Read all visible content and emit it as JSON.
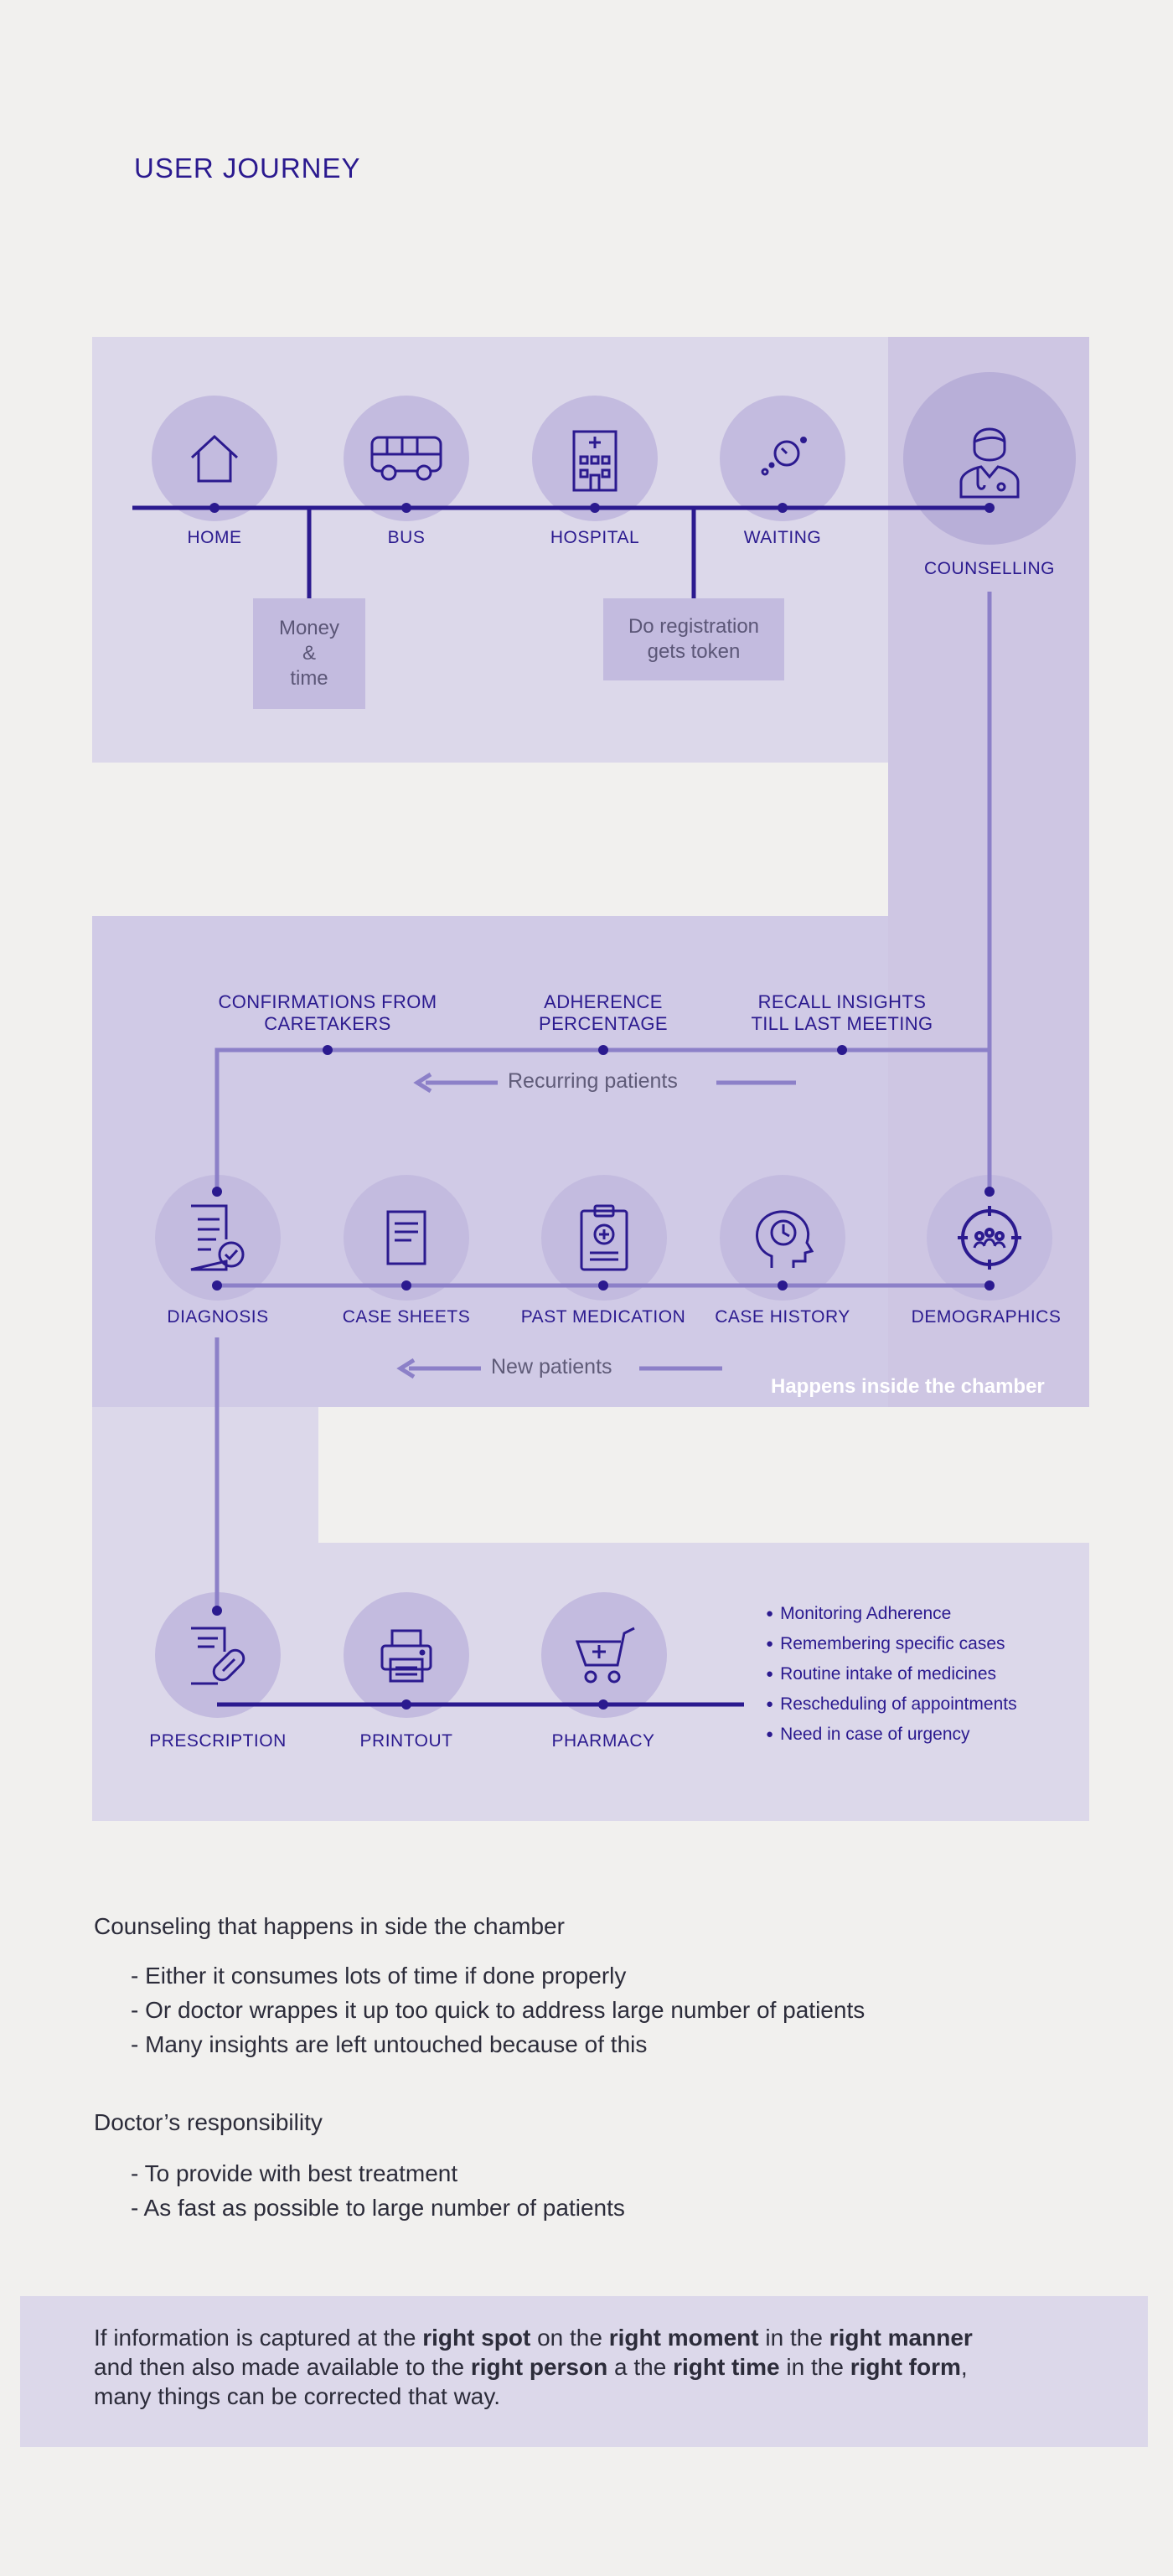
{
  "title": "USER JOURNEY",
  "stage1": {
    "items": [
      {
        "label": "HOME",
        "icon": "house-icon"
      },
      {
        "label": "BUS",
        "icon": "bus-icon"
      },
      {
        "label": "HOSPITAL",
        "icon": "hospital-building-icon"
      },
      {
        "label": "WAITING",
        "icon": "waiting-timer-icon"
      },
      {
        "label": "COUNSELLING",
        "icon": "doctor-icon"
      }
    ],
    "note_money": "Money\n&\ntime",
    "note_registration": "Do registration\ngets token"
  },
  "stage2": {
    "recurring_tags": [
      "CONFIRMATIONS FROM\nCARETAKERS",
      "ADHERENCE\nPERCENTAGE",
      "RECALL INSIGHTS\nTILL LAST MEETING"
    ],
    "recurring_label": "Recurring patients",
    "items": [
      {
        "label": "DIAGNOSIS",
        "icon": "diagnosis-clipboard-icon"
      },
      {
        "label": "CASE SHEETS",
        "icon": "document-icon"
      },
      {
        "label": "PAST MEDICATION",
        "icon": "medical-clipboard-icon"
      },
      {
        "label": "CASE HISTORY",
        "icon": "head-clock-icon"
      },
      {
        "label": "DEMOGRAPHICS",
        "icon": "demographics-target-icon"
      }
    ],
    "new_label": "New patients",
    "chamber_note": "Happens inside the chamber"
  },
  "stage3": {
    "items": [
      {
        "label": "PRESCRIPTION",
        "icon": "prescription-pill-icon"
      },
      {
        "label": "PRINTOUT",
        "icon": "printer-icon"
      },
      {
        "label": "PHARMACY",
        "icon": "pharmacy-cart-icon"
      }
    ],
    "bullets": [
      "Monitoring Adherence",
      "Remembering specific cases",
      "Routine intake of medicines",
      "Rescheduling of appointments",
      "Need in case of urgency"
    ]
  },
  "notes": {
    "counseling_heading": "Counseling that happens in side the chamber",
    "counseling_points": [
      "- Either it consumes lots of time if done properly",
      "- Or doctor wrappes it up too quick to address large number of patients",
      "- Many insights are left untouched because of this"
    ],
    "responsibility_heading": "Doctor’s responsibility",
    "responsibility_points": [
      "- To provide with best treatment",
      "- As fast as possible to large number of patients"
    ]
  },
  "conclusion": {
    "l1_a": "If information is captured at the ",
    "l1_b": "right spot",
    "l1_c": " on the ",
    "l1_d": "right moment",
    "l1_e": " in the ",
    "l1_f": "right manner",
    "l2_a": "and then also made available to the ",
    "l2_b": "right person",
    "l2_c": " a the ",
    "l2_d": "right time",
    "l2_e": " in the ",
    "l2_f": "right form",
    "l2_g": ",",
    "l3": "many things can be corrected that way."
  },
  "colors": {
    "accent": "#2b1a8f",
    "line": "#8c80c8",
    "panel": "#dcd8ea",
    "circle": "#c3bbdf"
  }
}
